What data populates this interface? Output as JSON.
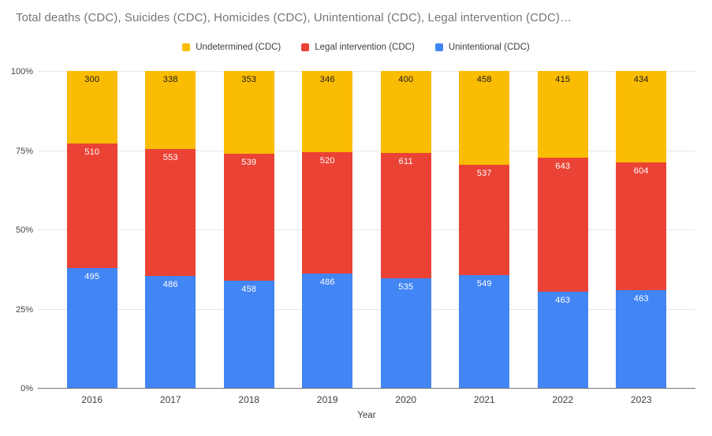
{
  "title": "Total deaths (CDC), Suicides (CDC), Homicides (CDC), Unintentional (CDC), Legal intervention (CDC)…",
  "legend": [
    {
      "label": "Undetermined (CDC)",
      "color": "#FBBC04"
    },
    {
      "label": "Legal intervention (CDC)",
      "color": "#EA4335"
    },
    {
      "label": "Unintentional (CDC)",
      "color": "#4285F4"
    }
  ],
  "axis": {
    "x_title": "Year",
    "y_ticks": [
      {
        "label": "100%",
        "value": 100
      },
      {
        "label": "75%",
        "value": 75
      },
      {
        "label": "50%",
        "value": 50
      },
      {
        "label": "25%",
        "value": 25
      },
      {
        "label": "0%",
        "value": 0
      }
    ]
  },
  "chart_data": {
    "type": "bar",
    "stacking": "percent",
    "title": "Total deaths (CDC), Suicides (CDC), Homicides (CDC), Unintentional (CDC), Legal intervention (CDC)…",
    "xlabel": "Year",
    "ylabel": "",
    "ylim": [
      0,
      100
    ],
    "grid": true,
    "legend_position": "top",
    "categories": [
      "2016",
      "2017",
      "2018",
      "2019",
      "2020",
      "2021",
      "2022",
      "2023"
    ],
    "series_order": "bottom-to-top",
    "series": [
      {
        "name": "Unintentional (CDC)",
        "color": "#4285F4",
        "label_color": "#ffffff",
        "values": [
          495,
          486,
          458,
          486,
          535,
          549,
          463,
          463
        ]
      },
      {
        "name": "Legal intervention (CDC)",
        "color": "#EA4335",
        "label_color": "#ffffff",
        "values": [
          510,
          553,
          539,
          520,
          611,
          537,
          643,
          604
        ]
      },
      {
        "name": "Undetermined (CDC)",
        "color": "#FBBC04",
        "label_color": "#1a1a1a",
        "values": [
          300,
          338,
          353,
          346,
          400,
          458,
          415,
          434
        ]
      }
    ]
  }
}
